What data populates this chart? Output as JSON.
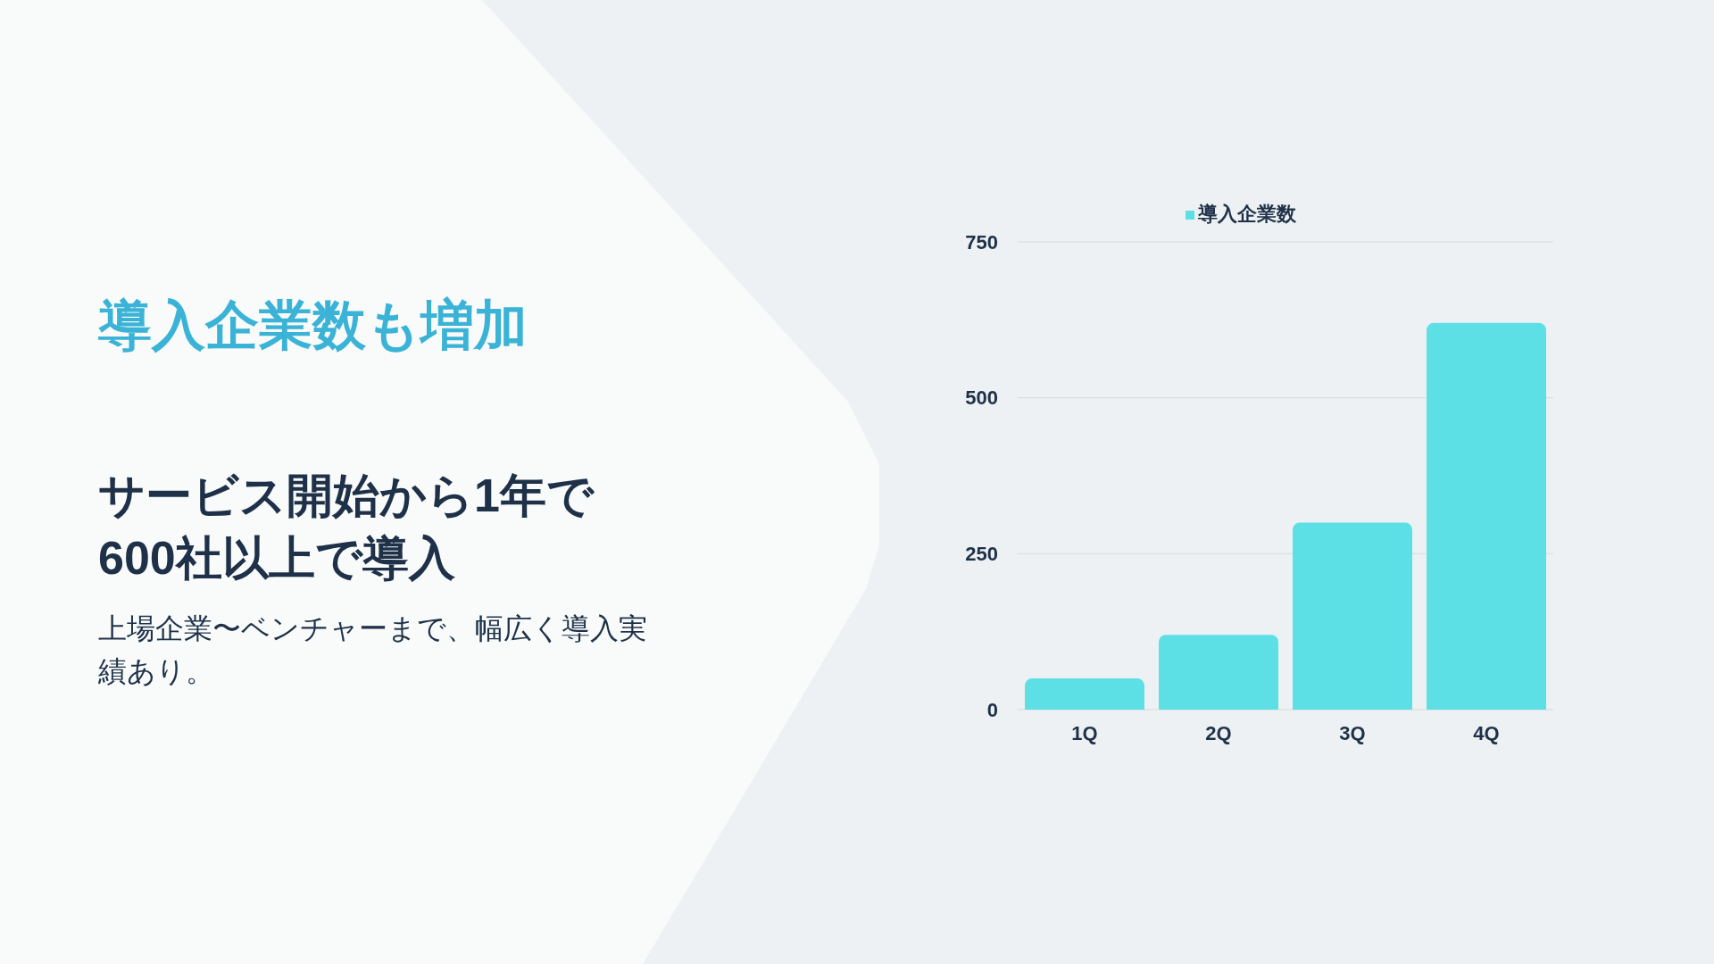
{
  "chart_data": {
    "type": "bar",
    "title": "導入企業数も増加",
    "subtitle": "サービス開始から1年で600社以上で導入",
    "annotations": [
      "上場企業〜ベンチャーまで、幅広く導入実績あり。"
    ],
    "categories": [
      "1Q",
      "2Q",
      "3Q",
      "4Q"
    ],
    "series": [
      {
        "name": "導入企業数",
        "color": "#5ce0e6",
        "values": [
          50,
          120,
          300,
          620
        ]
      }
    ],
    "ylim": [
      0,
      750
    ],
    "yticks": [
      0,
      250,
      500,
      750
    ],
    "grid": "y",
    "legend": "top"
  }
}
